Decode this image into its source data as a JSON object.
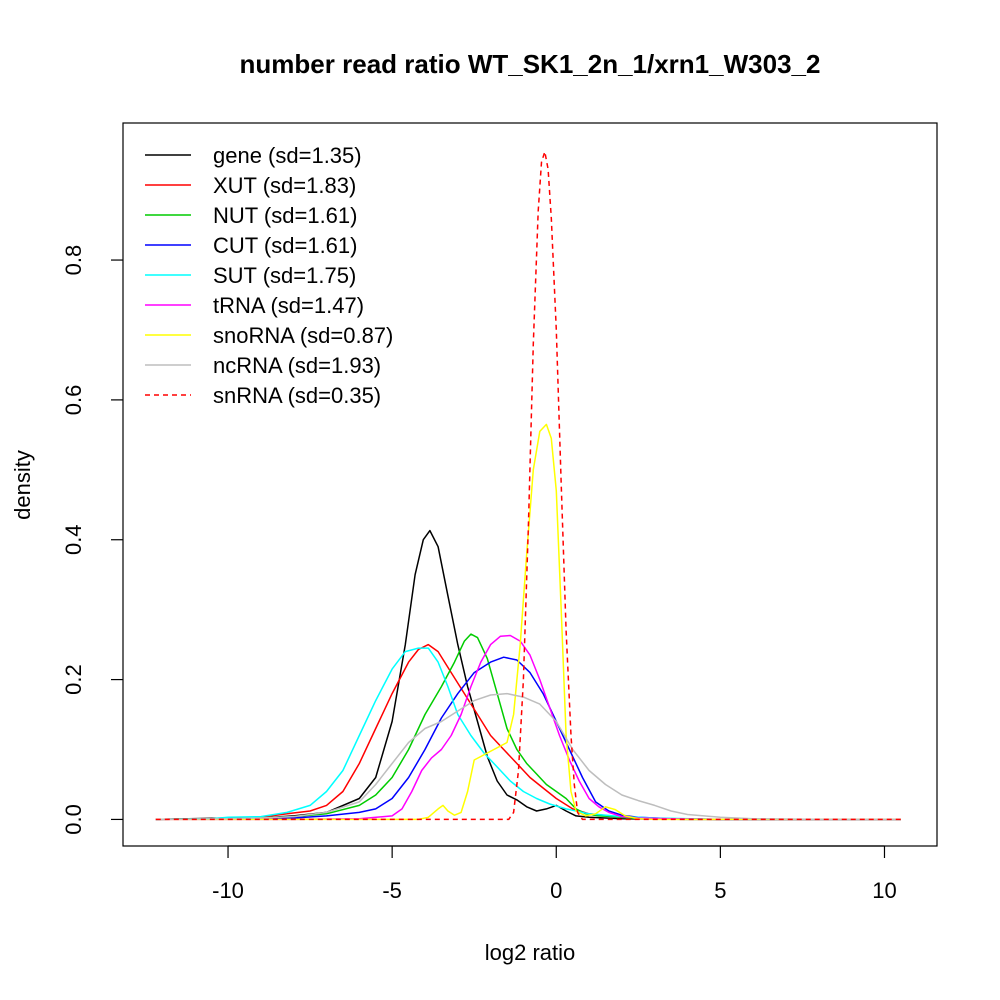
{
  "chart_data": {
    "type": "line",
    "title": "number read ratio WT_SK1_2n_1/xrn1_W303_2",
    "xlabel": "log2 ratio",
    "ylabel": "density",
    "xlim": [
      -13.2,
      11.6
    ],
    "ylim": [
      -0.038,
      0.996
    ],
    "xticks": [
      -10,
      -5,
      0,
      5,
      10
    ],
    "xtick_labels": [
      "-10",
      "-5",
      "0",
      "5",
      "10"
    ],
    "yticks": [
      0.0,
      0.2,
      0.4,
      0.6,
      0.8
    ],
    "ytick_labels": [
      "0.0",
      "0.2",
      "0.4",
      "0.6",
      "0.8"
    ],
    "grid": false,
    "legend_position": "top-left",
    "series": [
      {
        "name": "gene (sd=1.35)",
        "color": "#000000",
        "dash": "solid",
        "points": [
          [
            -12.2,
            0
          ],
          [
            -10,
            0.002
          ],
          [
            -9,
            0.002
          ],
          [
            -8,
            0.005
          ],
          [
            -7,
            0.01
          ],
          [
            -6,
            0.03
          ],
          [
            -5.5,
            0.06
          ],
          [
            -5,
            0.14
          ],
          [
            -4.6,
            0.25
          ],
          [
            -4.3,
            0.35
          ],
          [
            -4.05,
            0.4
          ],
          [
            -3.85,
            0.413
          ],
          [
            -3.6,
            0.39
          ],
          [
            -3.3,
            0.32
          ],
          [
            -3,
            0.25
          ],
          [
            -2.7,
            0.19
          ],
          [
            -2.4,
            0.14
          ],
          [
            -2.1,
            0.09
          ],
          [
            -1.8,
            0.055
          ],
          [
            -1.5,
            0.035
          ],
          [
            -1.2,
            0.028
          ],
          [
            -0.9,
            0.018
          ],
          [
            -0.6,
            0.012
          ],
          [
            -0.3,
            0.015
          ],
          [
            0,
            0.02
          ],
          [
            0.3,
            0.012
          ],
          [
            0.6,
            0.005
          ],
          [
            1,
            0.003
          ],
          [
            2,
            0.001
          ],
          [
            4,
            0
          ],
          [
            10.5,
            0
          ]
        ]
      },
      {
        "name": "XUT (sd=1.83)",
        "color": "#ff0000",
        "dash": "solid",
        "points": [
          [
            -12.2,
            0
          ],
          [
            -10,
            0.001
          ],
          [
            -9,
            0.003
          ],
          [
            -8.2,
            0.008
          ],
          [
            -7.5,
            0.012
          ],
          [
            -7,
            0.02
          ],
          [
            -6.5,
            0.04
          ],
          [
            -6,
            0.08
          ],
          [
            -5.5,
            0.13
          ],
          [
            -5,
            0.18
          ],
          [
            -4.5,
            0.225
          ],
          [
            -4.2,
            0.243
          ],
          [
            -3.9,
            0.25
          ],
          [
            -3.6,
            0.24
          ],
          [
            -3.2,
            0.21
          ],
          [
            -2.8,
            0.18
          ],
          [
            -2.4,
            0.15
          ],
          [
            -2,
            0.12
          ],
          [
            -1.6,
            0.1
          ],
          [
            -1.2,
            0.08
          ],
          [
            -0.8,
            0.06
          ],
          [
            -0.4,
            0.045
          ],
          [
            0,
            0.03
          ],
          [
            0.5,
            0.015
          ],
          [
            1,
            0.008
          ],
          [
            2,
            0.003
          ],
          [
            3,
            0.001
          ],
          [
            5,
            0
          ],
          [
            10.5,
            0
          ]
        ]
      },
      {
        "name": "NUT (sd=1.61)",
        "color": "#00cc00",
        "dash": "solid",
        "points": [
          [
            -12.2,
            0
          ],
          [
            -10,
            0.001
          ],
          [
            -9,
            0.002
          ],
          [
            -8,
            0.004
          ],
          [
            -7,
            0.008
          ],
          [
            -6,
            0.02
          ],
          [
            -5.5,
            0.035
          ],
          [
            -5,
            0.06
          ],
          [
            -4.5,
            0.1
          ],
          [
            -4,
            0.15
          ],
          [
            -3.5,
            0.19
          ],
          [
            -3.1,
            0.225
          ],
          [
            -2.8,
            0.255
          ],
          [
            -2.6,
            0.265
          ],
          [
            -2.4,
            0.26
          ],
          [
            -2.1,
            0.23
          ],
          [
            -1.8,
            0.18
          ],
          [
            -1.5,
            0.13
          ],
          [
            -1.2,
            0.1
          ],
          [
            -0.9,
            0.08
          ],
          [
            -0.6,
            0.065
          ],
          [
            -0.3,
            0.05
          ],
          [
            0,
            0.04
          ],
          [
            0.3,
            0.03
          ],
          [
            0.6,
            0.015
          ],
          [
            0.9,
            0.008
          ],
          [
            1.3,
            0.005
          ],
          [
            1.8,
            0.004
          ],
          [
            2.2,
            0.002
          ],
          [
            3,
            0.001
          ],
          [
            5,
            0
          ],
          [
            10.5,
            0
          ]
        ]
      },
      {
        "name": "CUT (sd=1.61)",
        "color": "#0000ff",
        "dash": "solid",
        "points": [
          [
            -12.2,
            0
          ],
          [
            -9,
            0.001
          ],
          [
            -8,
            0.002
          ],
          [
            -7,
            0.005
          ],
          [
            -6,
            0.01
          ],
          [
            -5.5,
            0.015
          ],
          [
            -5,
            0.03
          ],
          [
            -4.5,
            0.06
          ],
          [
            -4,
            0.1
          ],
          [
            -3.5,
            0.145
          ],
          [
            -3,
            0.18
          ],
          [
            -2.5,
            0.21
          ],
          [
            -2,
            0.225
          ],
          [
            -1.6,
            0.232
          ],
          [
            -1.2,
            0.228
          ],
          [
            -0.8,
            0.21
          ],
          [
            -0.4,
            0.18
          ],
          [
            0,
            0.14
          ],
          [
            0.4,
            0.1
          ],
          [
            0.8,
            0.06
          ],
          [
            1.2,
            0.025
          ],
          [
            1.6,
            0.012
          ],
          [
            2,
            0.006
          ],
          [
            2.5,
            0.003
          ],
          [
            3.5,
            0.001
          ],
          [
            5,
            0
          ],
          [
            10.5,
            0
          ]
        ]
      },
      {
        "name": "SUT (sd=1.75)",
        "color": "#00ffff",
        "dash": "solid",
        "points": [
          [
            -12.2,
            0
          ],
          [
            -10.5,
            0.001
          ],
          [
            -10,
            0.003
          ],
          [
            -9,
            0.004
          ],
          [
            -8.2,
            0.01
          ],
          [
            -7.5,
            0.02
          ],
          [
            -7,
            0.04
          ],
          [
            -6.5,
            0.07
          ],
          [
            -6,
            0.12
          ],
          [
            -5.5,
            0.17
          ],
          [
            -5,
            0.215
          ],
          [
            -4.6,
            0.24
          ],
          [
            -4.2,
            0.245
          ],
          [
            -3.9,
            0.245
          ],
          [
            -3.6,
            0.225
          ],
          [
            -3.3,
            0.19
          ],
          [
            -3,
            0.15
          ],
          [
            -2.6,
            0.12
          ],
          [
            -2.2,
            0.095
          ],
          [
            -1.8,
            0.075
          ],
          [
            -1.4,
            0.055
          ],
          [
            -1,
            0.04
          ],
          [
            -0.6,
            0.03
          ],
          [
            -0.2,
            0.022
          ],
          [
            0.3,
            0.015
          ],
          [
            1,
            0.008
          ],
          [
            2,
            0.004
          ],
          [
            3,
            0.002
          ],
          [
            5,
            0
          ],
          [
            10.5,
            0
          ]
        ]
      },
      {
        "name": "tRNA (sd=1.47)",
        "color": "#ff00ff",
        "dash": "solid",
        "points": [
          [
            -12.2,
            0
          ],
          [
            -8,
            0
          ],
          [
            -6,
            0.001
          ],
          [
            -5,
            0.005
          ],
          [
            -4.7,
            0.015
          ],
          [
            -4.4,
            0.04
          ],
          [
            -4.1,
            0.07
          ],
          [
            -3.8,
            0.088
          ],
          [
            -3.5,
            0.1
          ],
          [
            -3.2,
            0.12
          ],
          [
            -2.9,
            0.15
          ],
          [
            -2.6,
            0.19
          ],
          [
            -2.3,
            0.225
          ],
          [
            -2,
            0.25
          ],
          [
            -1.7,
            0.262
          ],
          [
            -1.4,
            0.263
          ],
          [
            -1.1,
            0.255
          ],
          [
            -0.8,
            0.235
          ],
          [
            -0.5,
            0.2
          ],
          [
            -0.2,
            0.16
          ],
          [
            0.1,
            0.12
          ],
          [
            0.4,
            0.085
          ],
          [
            0.7,
            0.055
          ],
          [
            1,
            0.03
          ],
          [
            1.3,
            0.018
          ],
          [
            1.6,
            0.01
          ],
          [
            2,
            0.004
          ],
          [
            2.5,
            0.002
          ],
          [
            3.5,
            0.001
          ],
          [
            5,
            0
          ],
          [
            10.5,
            0
          ]
        ]
      },
      {
        "name": "snoRNA (sd=0.87)",
        "color": "#ffff00",
        "dash": "solid",
        "points": [
          [
            -12.2,
            0
          ],
          [
            -4.2,
            0
          ],
          [
            -3.9,
            0.003
          ],
          [
            -3.6,
            0.015
          ],
          [
            -3.45,
            0.02
          ],
          [
            -3.3,
            0.012
          ],
          [
            -3.1,
            0.006
          ],
          [
            -2.9,
            0.01
          ],
          [
            -2.7,
            0.04
          ],
          [
            -2.5,
            0.085
          ],
          [
            -2.3,
            0.09
          ],
          [
            -2.1,
            0.095
          ],
          [
            -1.9,
            0.1
          ],
          [
            -1.7,
            0.105
          ],
          [
            -1.5,
            0.11
          ],
          [
            -1.3,
            0.15
          ],
          [
            -1.1,
            0.25
          ],
          [
            -0.9,
            0.38
          ],
          [
            -0.7,
            0.5
          ],
          [
            -0.5,
            0.555
          ],
          [
            -0.3,
            0.565
          ],
          [
            -0.15,
            0.545
          ],
          [
            0,
            0.47
          ],
          [
            0.15,
            0.3
          ],
          [
            0.3,
            0.12
          ],
          [
            0.45,
            0.04
          ],
          [
            0.6,
            0.012
          ],
          [
            0.9,
            0.005
          ],
          [
            1.2,
            0.008
          ],
          [
            1.5,
            0.018
          ],
          [
            1.8,
            0.014
          ],
          [
            2.1,
            0.005
          ],
          [
            2.5,
            0.001
          ],
          [
            3,
            0
          ],
          [
            10.5,
            0
          ]
        ]
      },
      {
        "name": "ncRNA (sd=1.93)",
        "color": "#bebebe",
        "dash": "solid",
        "points": [
          [
            -12.2,
            0
          ],
          [
            -10,
            0.001
          ],
          [
            -9,
            0.002
          ],
          [
            -8,
            0.004
          ],
          [
            -7,
            0.01
          ],
          [
            -6,
            0.025
          ],
          [
            -5.5,
            0.05
          ],
          [
            -5,
            0.08
          ],
          [
            -4.5,
            0.11
          ],
          [
            -4,
            0.13
          ],
          [
            -3.5,
            0.14
          ],
          [
            -3,
            0.155
          ],
          [
            -2.5,
            0.17
          ],
          [
            -2,
            0.178
          ],
          [
            -1.5,
            0.18
          ],
          [
            -1,
            0.175
          ],
          [
            -0.5,
            0.165
          ],
          [
            0,
            0.14
          ],
          [
            0.5,
            0.1
          ],
          [
            1,
            0.07
          ],
          [
            1.5,
            0.05
          ],
          [
            2,
            0.035
          ],
          [
            2.5,
            0.027
          ],
          [
            3,
            0.02
          ],
          [
            3.5,
            0.012
          ],
          [
            4,
            0.007
          ],
          [
            5,
            0.003
          ],
          [
            6,
            0.001
          ],
          [
            8,
            0
          ],
          [
            10.5,
            0
          ]
        ]
      },
      {
        "name": "snRNA (sd=0.35)",
        "color": "#ff0000",
        "dash": "dashed",
        "points": [
          [
            -12.2,
            0
          ],
          [
            -1.45,
            0
          ],
          [
            -1.3,
            0.01
          ],
          [
            -1.15,
            0.07
          ],
          [
            -1,
            0.2
          ],
          [
            -0.85,
            0.42
          ],
          [
            -0.7,
            0.68
          ],
          [
            -0.55,
            0.87
          ],
          [
            -0.45,
            0.94
          ],
          [
            -0.35,
            0.955
          ],
          [
            -0.25,
            0.93
          ],
          [
            -0.15,
            0.86
          ],
          [
            0,
            0.7
          ],
          [
            0.15,
            0.48
          ],
          [
            0.3,
            0.27
          ],
          [
            0.45,
            0.12
          ],
          [
            0.55,
            0.05
          ],
          [
            0.65,
            0.01
          ],
          [
            0.8,
            0
          ],
          [
            10.5,
            0
          ]
        ]
      }
    ]
  }
}
